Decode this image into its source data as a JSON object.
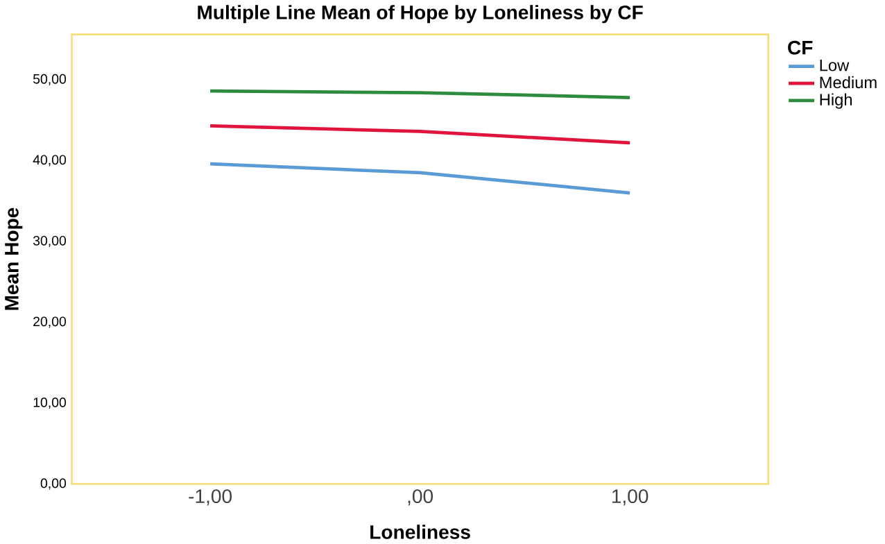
{
  "chart_data": {
    "type": "line",
    "title": "Multiple Line Mean of Hope by Loneliness by CF",
    "xlabel": "Loneliness",
    "ylabel": "Mean Hope",
    "legend_title": "CF",
    "x": [
      -1,
      0,
      1
    ],
    "xlim": [
      -1.66,
      1.66
    ],
    "xticks": [
      {
        "value": -1,
        "label": "-1,00"
      },
      {
        "value": 0,
        "label": ",00"
      },
      {
        "value": 1,
        "label": "1,00"
      }
    ],
    "ylim": [
      0,
      55.6
    ],
    "yticks": [
      {
        "value": 0,
        "label": "0,00"
      },
      {
        "value": 10,
        "label": "10,00"
      },
      {
        "value": 20,
        "label": "20,00"
      },
      {
        "value": 30,
        "label": "30,00"
      },
      {
        "value": 40,
        "label": "40,00"
      },
      {
        "value": 50,
        "label": "50,00"
      }
    ],
    "series": [
      {
        "name": "Low",
        "color": "#5b9bd5",
        "values": [
          39.6,
          38.5,
          36.0
        ]
      },
      {
        "name": "Medium",
        "color": "#e0143c",
        "values": [
          44.3,
          43.6,
          42.2
        ]
      },
      {
        "name": "High",
        "color": "#2e8b3e",
        "values": [
          48.6,
          48.4,
          47.8
        ]
      }
    ],
    "grid": false,
    "legend": "right",
    "marker": "none",
    "line_style": "solid"
  }
}
